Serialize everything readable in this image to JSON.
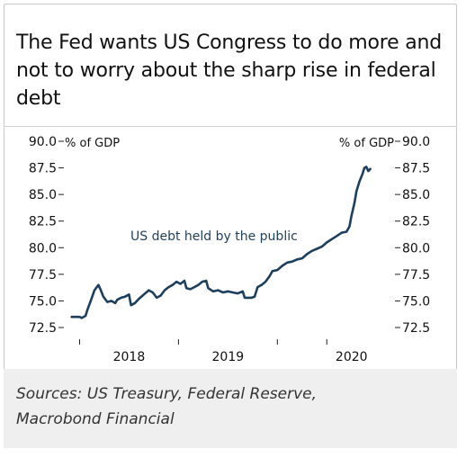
{
  "title": "The Fed wants US Congress to do more and not to worry about the sharp rise in federal debt",
  "sources_line1": "Sources: US Treasury, Federal Reserve,",
  "sources_line2": "Macrobond Financial",
  "colors": {
    "line": "#1d3f5e",
    "axis": "#222222",
    "sources_bg": "#efefef"
  },
  "chart_data": {
    "type": "line",
    "y_unit_left": "% of GDP",
    "y_unit_right": "% of GDP",
    "ylim": [
      72.5,
      90.0
    ],
    "yticks": [
      72.5,
      75.0,
      77.5,
      80.0,
      82.5,
      85.0,
      87.5,
      90.0
    ],
    "ytick_labels": [
      "72.5",
      "75.0",
      "77.5",
      "80.0",
      "82.5",
      "85.0",
      "87.5",
      "90.0"
    ],
    "xlim": [
      2017.35,
      2020.68
    ],
    "x_tick_marks": [
      2017.5,
      2018.5,
      2019.5,
      2020.0
    ],
    "x_labels": [
      {
        "text": "2018",
        "x": 2018.0
      },
      {
        "text": "2019",
        "x": 2019.0
      },
      {
        "text": "2020",
        "x": 2020.25
      }
    ],
    "series": [
      {
        "label": "US debt held by the public",
        "x": [
          2017.42,
          2017.5,
          2017.52,
          2017.56,
          2017.58,
          2017.62,
          2017.65,
          2017.69,
          2017.71,
          2017.74,
          2017.78,
          2017.82,
          2017.86,
          2017.88,
          2017.92,
          2017.96,
          2018.0,
          2018.02,
          2018.06,
          2018.1,
          2018.15,
          2018.2,
          2018.24,
          2018.28,
          2018.32,
          2018.36,
          2018.4,
          2018.44,
          2018.48,
          2018.52,
          2018.56,
          2018.58,
          2018.62,
          2018.66,
          2018.7,
          2018.74,
          2018.78,
          2018.8,
          2018.85,
          2018.9,
          2018.95,
          2019.0,
          2019.05,
          2019.1,
          2019.15,
          2019.17,
          2019.2,
          2019.24,
          2019.27,
          2019.3,
          2019.34,
          2019.38,
          2019.42,
          2019.45,
          2019.5,
          2019.55,
          2019.6,
          2019.65,
          2019.7,
          2019.75,
          2019.8,
          2019.85,
          2019.9,
          2019.95,
          2020.0,
          2020.05,
          2020.1,
          2020.15,
          2020.2,
          2020.23,
          2020.25,
          2020.28,
          2020.3,
          2020.33,
          2020.36,
          2020.38,
          2020.4,
          2020.42,
          2020.44
        ],
        "y": [
          73.5,
          73.5,
          73.4,
          73.6,
          74.2,
          75.2,
          76.0,
          76.5,
          76.1,
          75.4,
          74.9,
          75.0,
          74.8,
          75.1,
          75.3,
          75.4,
          75.6,
          74.6,
          74.8,
          75.2,
          75.6,
          76.0,
          75.8,
          75.3,
          75.5,
          76.0,
          76.3,
          76.5,
          76.8,
          76.6,
          76.9,
          76.2,
          76.1,
          76.3,
          76.5,
          76.8,
          76.9,
          76.2,
          75.9,
          76.0,
          75.8,
          75.9,
          75.8,
          75.7,
          75.9,
          75.3,
          75.3,
          75.3,
          75.4,
          76.3,
          76.5,
          76.8,
          77.3,
          77.8,
          77.9,
          78.3,
          78.6,
          78.7,
          78.9,
          79.0,
          79.4,
          79.7,
          79.9,
          80.1,
          80.5,
          80.8,
          81.1,
          81.4,
          81.5,
          82.0,
          83.0,
          84.2,
          85.3,
          86.2,
          86.9,
          87.5,
          87.6,
          87.2,
          87.4
        ]
      }
    ]
  }
}
